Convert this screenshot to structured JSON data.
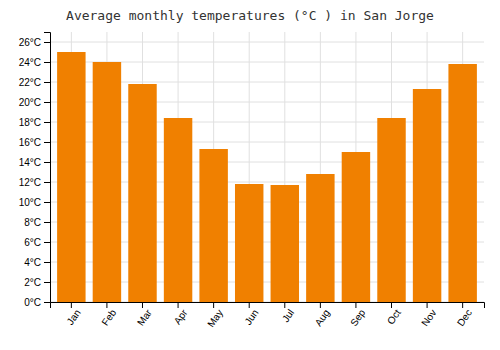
{
  "chart_data": {
    "type": "bar",
    "title": "Average monthly temperatures (°C ) in San Jorge",
    "categories": [
      "Jan",
      "Feb",
      "Mar",
      "Apr",
      "May",
      "Jun",
      "Jul",
      "Aug",
      "Sep",
      "Oct",
      "Nov",
      "Dec"
    ],
    "values": [
      25.0,
      24.0,
      21.8,
      18.4,
      15.3,
      11.8,
      11.7,
      12.8,
      15.0,
      18.4,
      21.3,
      23.8
    ],
    "color": "#F08000",
    "ylim": [
      0,
      27
    ],
    "yticks": [
      {
        "value": 0,
        "label": "0°C"
      },
      {
        "value": 2,
        "label": "2°C"
      },
      {
        "value": 4,
        "label": "4°C"
      },
      {
        "value": 6,
        "label": "6°C"
      },
      {
        "value": 8,
        "label": "8°C"
      },
      {
        "value": 10,
        "label": "10°C"
      },
      {
        "value": 12,
        "label": "12°C"
      },
      {
        "value": 14,
        "label": "14°C"
      },
      {
        "value": 16,
        "label": "16°C"
      },
      {
        "value": 18,
        "label": "18°C"
      },
      {
        "value": 20,
        "label": "20°C"
      },
      {
        "value": 22,
        "label": "22°C"
      },
      {
        "value": 24,
        "label": "24°C"
      },
      {
        "value": 26,
        "label": "26°C"
      }
    ],
    "grid": true
  }
}
